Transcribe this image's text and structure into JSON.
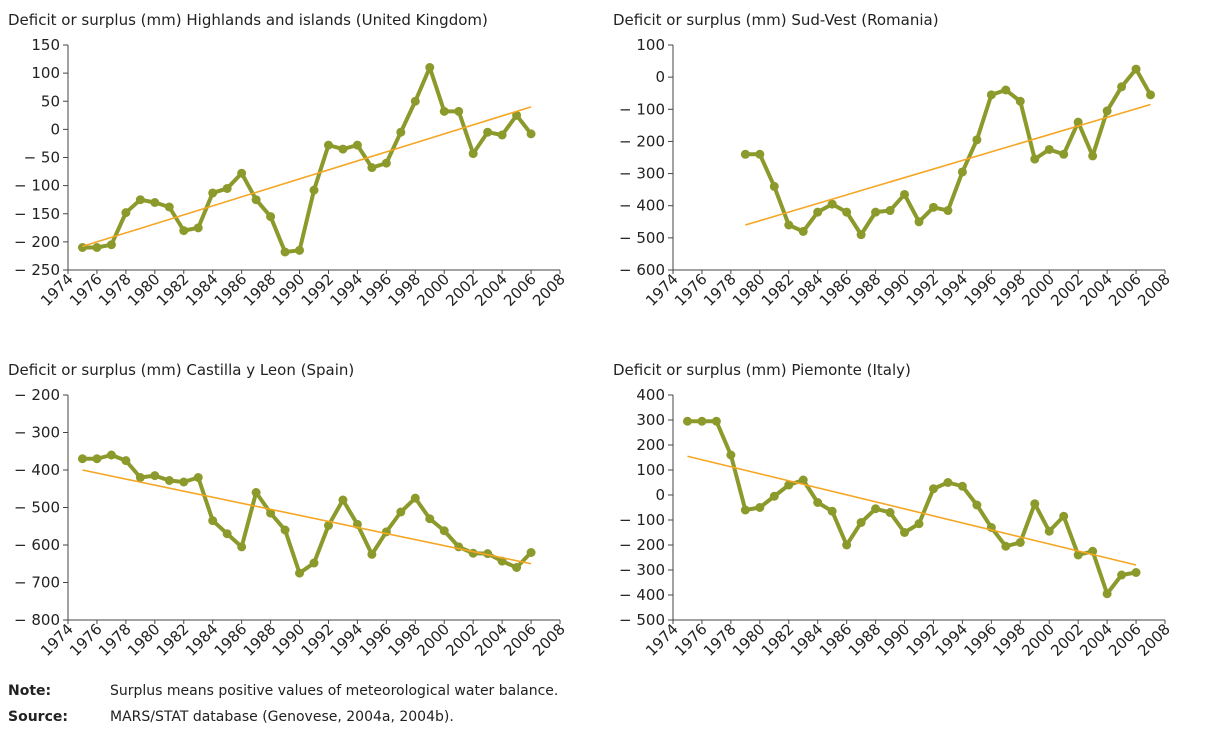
{
  "chart_data": [
    {
      "type": "line",
      "title": "Deficit or surplus (mm) Highlands and islands (United Kingdom)",
      "x": [
        1975,
        1976,
        1977,
        1978,
        1979,
        1980,
        1981,
        1982,
        1983,
        1984,
        1985,
        1986,
        1987,
        1988,
        1989,
        1990,
        1991,
        1992,
        1993,
        1994,
        1995,
        1996,
        1997,
        1998,
        1999,
        2000,
        2001,
        2002,
        2003,
        2004,
        2005,
        2006
      ],
      "series": [
        {
          "color": "#8c9a2c",
          "values": [
            -210,
            -210,
            -205,
            -148,
            -125,
            -130,
            -138,
            -180,
            -175,
            -113,
            -105,
            -78,
            -125,
            -155,
            -218,
            -215,
            -108,
            -28,
            -35,
            -28,
            -68,
            -60,
            -5,
            50,
            110,
            32,
            32,
            -43,
            -5,
            -10,
            25,
            -8
          ]
        }
      ],
      "trend": {
        "color": "#f5a623",
        "x": [
          1975,
          2006
        ],
        "values": [
          -208,
          40
        ]
      },
      "xlim": [
        1974,
        2008
      ],
      "xticks": [
        1974,
        1976,
        1978,
        1980,
        1982,
        1984,
        1986,
        1988,
        1990,
        1992,
        1994,
        1996,
        1998,
        2000,
        2002,
        2004,
        2006,
        2008
      ],
      "ylim": [
        -250,
        150
      ],
      "yticks": [
        150,
        100,
        50,
        0,
        {
          "value": -50,
          "label": "− 50"
        },
        {
          "value": -100,
          "label": "− 100"
        },
        {
          "value": -150,
          "label": "− 150"
        },
        {
          "value": -200,
          "label": "− 200"
        },
        {
          "value": -250,
          "label": "− 250"
        }
      ]
    },
    {
      "type": "line",
      "title": "Deficit or surplus (mm) Sud-Vest (Romania)",
      "x": [
        1979,
        1980,
        1981,
        1982,
        1983,
        1984,
        1985,
        1986,
        1987,
        1988,
        1989,
        1990,
        1991,
        1992,
        1993,
        1994,
        1995,
        1996,
        1997,
        1998,
        1999,
        2000,
        2001,
        2002,
        2003,
        2004,
        2005,
        2006,
        2007
      ],
      "series": [
        {
          "color": "#8c9a2c",
          "values": [
            -240,
            -240,
            -340,
            -460,
            -480,
            -420,
            -395,
            -420,
            -490,
            -420,
            -415,
            -365,
            -450,
            -405,
            -415,
            -295,
            -195,
            -55,
            -40,
            -75,
            -255,
            -225,
            -240,
            -140,
            -245,
            -105,
            -30,
            25,
            -55
          ]
        }
      ],
      "trend": {
        "color": "#f5a623",
        "x": [
          1979,
          2007
        ],
        "values": [
          -460,
          -85
        ]
      },
      "xlim": [
        1974,
        2008
      ],
      "xticks": [
        1974,
        1976,
        1978,
        1980,
        1982,
        1984,
        1986,
        1988,
        1990,
        1992,
        1994,
        1996,
        1998,
        2000,
        2002,
        2004,
        2006,
        2008
      ],
      "ylim": [
        -600,
        100
      ],
      "yticks": [
        100,
        0,
        {
          "value": -100,
          "label": "− 100"
        },
        {
          "value": -200,
          "label": "− 200"
        },
        {
          "value": -300,
          "label": "− 300"
        },
        {
          "value": -400,
          "label": "− 400"
        },
        {
          "value": -500,
          "label": "− 500"
        },
        {
          "value": -600,
          "label": "− 600"
        }
      ]
    },
    {
      "type": "line",
      "title": "Deficit or surplus (mm) Castilla y Leon (Spain)",
      "x": [
        1975,
        1976,
        1977,
        1978,
        1979,
        1980,
        1981,
        1982,
        1983,
        1984,
        1985,
        1986,
        1987,
        1988,
        1989,
        1990,
        1991,
        1992,
        1993,
        1994,
        1995,
        1996,
        1997,
        1998,
        1999,
        2000,
        2001,
        2002,
        2003,
        2004,
        2005,
        2006
      ],
      "series": [
        {
          "color": "#8c9a2c",
          "values": [
            -370,
            -370,
            -360,
            -375,
            -420,
            -415,
            -428,
            -432,
            -420,
            -535,
            -570,
            -605,
            -460,
            -515,
            -560,
            -675,
            -648,
            -548,
            -480,
            -545,
            -625,
            -565,
            -512,
            -475,
            -530,
            -562,
            -605,
            -622,
            -623,
            -643,
            -660,
            -620
          ]
        }
      ],
      "trend": {
        "color": "#f5a623",
        "x": [
          1975,
          2006
        ],
        "values": [
          -400,
          -650
        ]
      },
      "xlim": [
        1974,
        2008
      ],
      "xticks": [
        1974,
        1976,
        1978,
        1980,
        1982,
        1984,
        1986,
        1988,
        1990,
        1992,
        1994,
        1996,
        1998,
        2000,
        2002,
        2004,
        2006,
        2008
      ],
      "ylim": [
        -800,
        -200
      ],
      "yticks": [
        {
          "value": -200,
          "label": "− 200"
        },
        {
          "value": -300,
          "label": "− 300"
        },
        {
          "value": -400,
          "label": "− 400"
        },
        {
          "value": -500,
          "label": "− 500"
        },
        {
          "value": -600,
          "label": "− 600"
        },
        {
          "value": -700,
          "label": "− 700"
        },
        {
          "value": -800,
          "label": "− 800"
        }
      ]
    },
    {
      "type": "line",
      "title": "Deficit or surplus (mm) Piemonte (Italy)",
      "x": [
        1975,
        1976,
        1977,
        1978,
        1979,
        1980,
        1981,
        1982,
        1983,
        1984,
        1985,
        1986,
        1987,
        1988,
        1989,
        1990,
        1991,
        1992,
        1993,
        1994,
        1995,
        1996,
        1997,
        1998,
        1999,
        2000,
        2001,
        2002,
        2003,
        2004,
        2005,
        2006
      ],
      "series": [
        {
          "color": "#8c9a2c",
          "values": [
            295,
            295,
            295,
            160,
            -60,
            -50,
            -5,
            40,
            60,
            -30,
            -65,
            -200,
            -110,
            -55,
            -70,
            -150,
            -115,
            25,
            50,
            35,
            -40,
            -130,
            -205,
            -190,
            -35,
            -145,
            -85,
            -240,
            -225,
            -395,
            -320,
            -310
          ]
        }
      ],
      "trend": {
        "color": "#f5a623",
        "x": [
          1975,
          2006
        ],
        "values": [
          155,
          -280
        ]
      },
      "xlim": [
        1974,
        2008
      ],
      "xticks": [
        1974,
        1976,
        1978,
        1980,
        1982,
        1984,
        1986,
        1988,
        1990,
        1992,
        1994,
        1996,
        1998,
        2000,
        2002,
        2004,
        2006,
        2008
      ],
      "ylim": [
        -500,
        400
      ],
      "yticks": [
        400,
        300,
        200,
        100,
        0,
        {
          "value": -100,
          "label": "− 100"
        },
        {
          "value": -200,
          "label": "− 200"
        },
        {
          "value": -300,
          "label": "− 300"
        },
        {
          "value": -400,
          "label": "− 400"
        },
        {
          "value": -500,
          "label": "− 500"
        }
      ]
    }
  ],
  "note": {
    "label": "Note:",
    "text": "Surplus means positive values of meteorological water balance."
  },
  "source": {
    "label": "Source:",
    "text": "MARS/STAT database (Genovese, 2004a, 2004b)."
  }
}
